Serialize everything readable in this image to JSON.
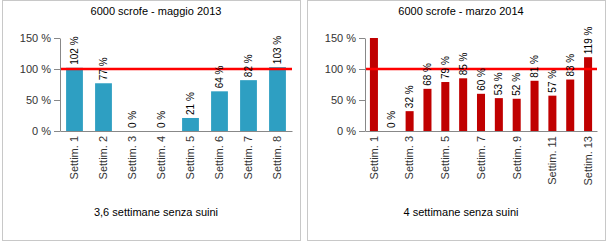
{
  "chart_data": [
    {
      "type": "bar",
      "title": "6000 scrofe - maggio 2013",
      "subtitle": "3,6 settimane senza suini",
      "categories": [
        "Settim. 1",
        "Settim. 2",
        "Settim. 3",
        "Settim. 4",
        "Settim. 5",
        "Settim. 6",
        "Settim. 7",
        "Settim. 8"
      ],
      "values": [
        102,
        77,
        0,
        0,
        21,
        64,
        82,
        103
      ],
      "value_labels": [
        "102 %",
        "77 %",
        "0 %",
        "0 %",
        "21 %",
        "64 %",
        "82 %",
        "103 %"
      ],
      "data_labels": true,
      "color": "#2e9fc2",
      "reference_line": 100,
      "ylim": [
        0,
        150
      ],
      "yticks": [
        {
          "value": 0,
          "label": "0 %"
        },
        {
          "value": 50,
          "label": "50 %"
        },
        {
          "value": 100,
          "label": "100 %"
        },
        {
          "value": 150,
          "label": "150 %"
        }
      ],
      "grid": false
    },
    {
      "type": "bar",
      "title": "6000 scrofe - marzo 2014",
      "subtitle": "4 settimane senza suini",
      "categories": [
        "Settim. 1",
        null,
        "Settim. 3",
        null,
        "Settim. 5",
        null,
        "Settim. 7",
        null,
        "Settim. 9",
        null,
        "Settim. 11",
        null,
        "Settim. 13"
      ],
      "values": [
        150,
        0,
        32,
        68,
        79,
        85,
        60,
        53,
        52,
        81,
        57,
        83,
        119
      ],
      "value_labels": [
        null,
        "0 %",
        "32 %",
        "68 %",
        "79 %",
        "85 %",
        "60 %",
        "53 %",
        "52 %",
        "81 %",
        "57 %",
        "83 %",
        "119 %"
      ],
      "data_labels": true,
      "color": "#c00000",
      "reference_line": 100,
      "ylim": [
        0,
        150
      ],
      "yticks": [
        {
          "value": 0,
          "label": "0 %"
        },
        {
          "value": 50,
          "label": "50 %"
        },
        {
          "value": 100,
          "label": "100 %"
        },
        {
          "value": 150,
          "label": "150 %"
        }
      ],
      "grid": false
    }
  ]
}
